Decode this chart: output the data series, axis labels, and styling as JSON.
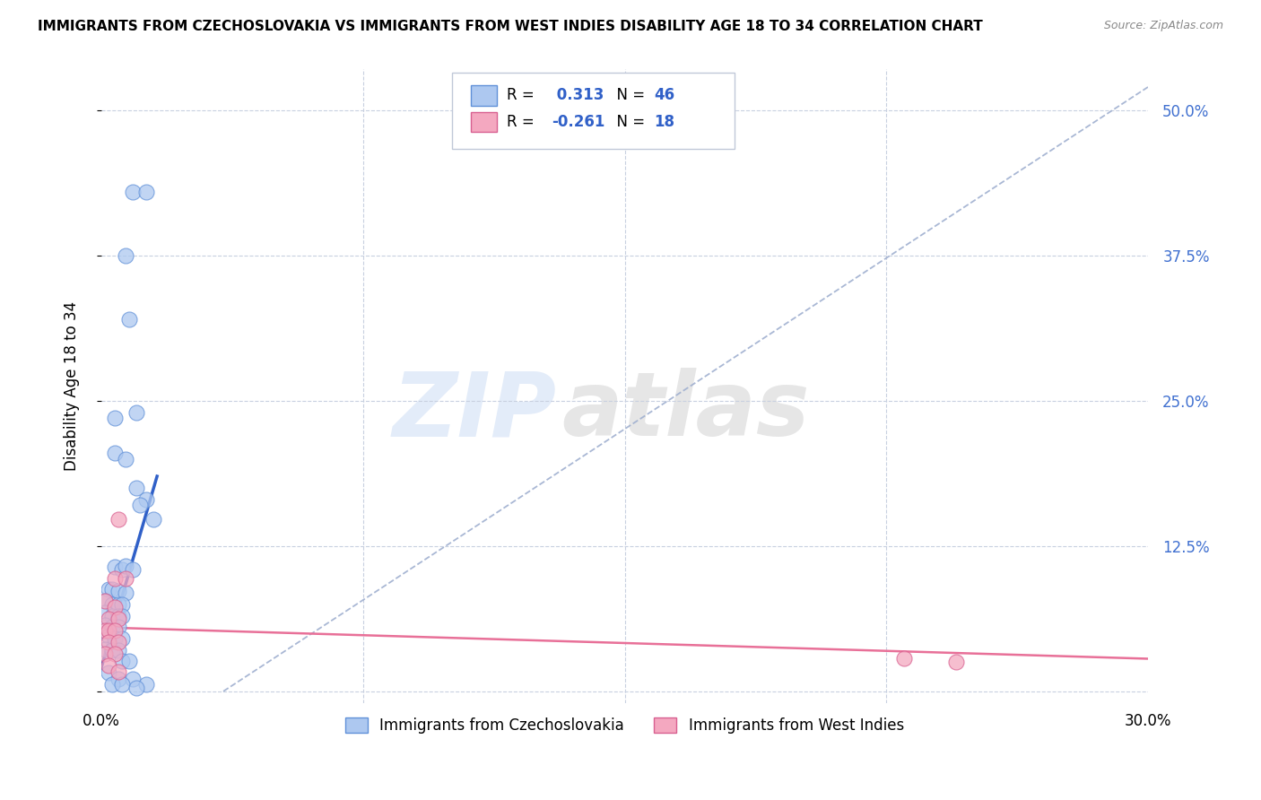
{
  "title": "IMMIGRANTS FROM CZECHOSLOVAKIA VS IMMIGRANTS FROM WEST INDIES DISABILITY AGE 18 TO 34 CORRELATION CHART",
  "source": "Source: ZipAtlas.com",
  "ylabel": "Disability Age 18 to 34",
  "yticks": [
    0.0,
    0.125,
    0.25,
    0.375,
    0.5
  ],
  "ytick_labels": [
    "",
    "12.5%",
    "25.0%",
    "37.5%",
    "50.0%"
  ],
  "xlim": [
    0.0,
    0.3
  ],
  "ylim": [
    -0.01,
    0.535
  ],
  "legend_r1_prefix": "R = ",
  "legend_r1_val": " 0.313",
  "legend_r1_n": "  N = ",
  "legend_r1_nval": "46",
  "legend_r2_prefix": "R = ",
  "legend_r2_val": "-0.261",
  "legend_r2_n": "  N = ",
  "legend_r2_nval": "18",
  "color_czecho": "#adc8f0",
  "color_czecho_edge": "#6090d8",
  "color_west": "#f4a8c0",
  "color_west_edge": "#d86090",
  "color_czecho_line": "#3060c8",
  "color_west_line": "#e87098",
  "color_dashed": "#a0b0d0",
  "watermark_zip": "ZIP",
  "watermark_atlas": "atlas",
  "czecho_points": [
    [
      0.009,
      0.43
    ],
    [
      0.013,
      0.43
    ],
    [
      0.007,
      0.375
    ],
    [
      0.008,
      0.32
    ],
    [
      0.004,
      0.235
    ],
    [
      0.01,
      0.24
    ],
    [
      0.004,
      0.205
    ],
    [
      0.007,
      0.2
    ],
    [
      0.01,
      0.175
    ],
    [
      0.013,
      0.165
    ],
    [
      0.011,
      0.16
    ],
    [
      0.015,
      0.148
    ],
    [
      0.004,
      0.107
    ],
    [
      0.006,
      0.105
    ],
    [
      0.007,
      0.108
    ],
    [
      0.009,
      0.105
    ],
    [
      0.002,
      0.088
    ],
    [
      0.003,
      0.088
    ],
    [
      0.005,
      0.086
    ],
    [
      0.007,
      0.085
    ],
    [
      0.001,
      0.078
    ],
    [
      0.003,
      0.075
    ],
    [
      0.005,
      0.075
    ],
    [
      0.006,
      0.075
    ],
    [
      0.001,
      0.068
    ],
    [
      0.003,
      0.065
    ],
    [
      0.005,
      0.065
    ],
    [
      0.006,
      0.065
    ],
    [
      0.001,
      0.057
    ],
    [
      0.003,
      0.055
    ],
    [
      0.005,
      0.055
    ],
    [
      0.002,
      0.048
    ],
    [
      0.004,
      0.045
    ],
    [
      0.006,
      0.045
    ],
    [
      0.001,
      0.036
    ],
    [
      0.003,
      0.035
    ],
    [
      0.005,
      0.035
    ],
    [
      0.006,
      0.026
    ],
    [
      0.008,
      0.026
    ],
    [
      0.002,
      0.016
    ],
    [
      0.005,
      0.011
    ],
    [
      0.009,
      0.011
    ],
    [
      0.003,
      0.006
    ],
    [
      0.006,
      0.006
    ],
    [
      0.013,
      0.006
    ],
    [
      0.01,
      0.003
    ]
  ],
  "west_points": [
    [
      0.005,
      0.148
    ],
    [
      0.004,
      0.097
    ],
    [
      0.007,
      0.097
    ],
    [
      0.001,
      0.078
    ],
    [
      0.004,
      0.072
    ],
    [
      0.002,
      0.062
    ],
    [
      0.005,
      0.062
    ],
    [
      0.001,
      0.052
    ],
    [
      0.002,
      0.052
    ],
    [
      0.004,
      0.052
    ],
    [
      0.002,
      0.042
    ],
    [
      0.005,
      0.042
    ],
    [
      0.001,
      0.032
    ],
    [
      0.004,
      0.032
    ],
    [
      0.002,
      0.022
    ],
    [
      0.005,
      0.017
    ],
    [
      0.23,
      0.028
    ],
    [
      0.245,
      0.025
    ]
  ],
  "czecho_line_x": [
    0.0,
    0.016
  ],
  "czecho_line_y": [
    0.02,
    0.185
  ],
  "west_line_x": [
    0.0,
    0.3
  ],
  "west_line_y": [
    0.055,
    0.028
  ],
  "dashed_line_x": [
    0.035,
    0.3
  ],
  "dashed_line_y": [
    0.0,
    0.52
  ]
}
